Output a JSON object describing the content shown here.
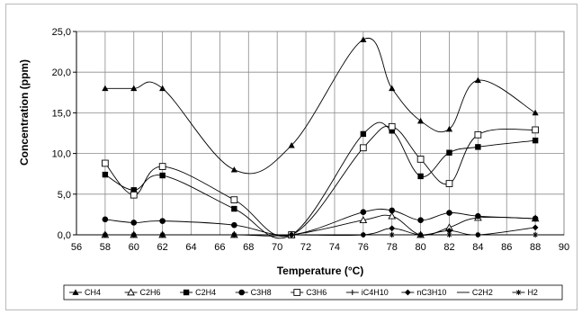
{
  "chart_data": {
    "type": "line",
    "title": "",
    "xlabel": "Temperature (°C)",
    "ylabel": "Concentration (ppm)",
    "xlim": [
      56,
      90
    ],
    "ylim": [
      0,
      25
    ],
    "xticks": [
      "56",
      "58",
      "60",
      "62",
      "64",
      "66",
      "68",
      "70",
      "72",
      "74",
      "76",
      "78",
      "80",
      "82",
      "84",
      "86",
      "88",
      "90"
    ],
    "yticks": [
      "0,0",
      "5,0",
      "10,0",
      "15,0",
      "20,0",
      "25,0"
    ],
    "grid": "on",
    "legend_position": "bottom",
    "series": [
      {
        "name": "CH4",
        "marker": "triangle-filled",
        "color": "#000000",
        "x": [
          58,
          60,
          62,
          67,
          71,
          76,
          78,
          80,
          82,
          84,
          88
        ],
        "y": [
          18.0,
          18.0,
          18.0,
          8.0,
          11.0,
          24.0,
          18.0,
          14.0,
          13.0,
          19.0,
          15.0
        ]
      },
      {
        "name": "C2H6",
        "marker": "triangle-open",
        "color": "#000000",
        "x": [
          58,
          60,
          62,
          67,
          71,
          76,
          78,
          80,
          82,
          84,
          88
        ],
        "y": [
          0.0,
          0.0,
          0.0,
          0.0,
          0.0,
          1.8,
          2.3,
          0.0,
          0.9,
          2.1,
          2.0
        ]
      },
      {
        "name": "C2H4",
        "marker": "square-filled",
        "color": "#000000",
        "x": [
          58,
          60,
          62,
          67,
          71,
          76,
          78,
          80,
          82,
          84,
          88
        ],
        "y": [
          7.4,
          5.5,
          7.3,
          3.2,
          0.0,
          12.4,
          12.8,
          7.2,
          10.1,
          10.8,
          11.6
        ]
      },
      {
        "name": "C3H8",
        "marker": "circle-filled",
        "color": "#000000",
        "x": [
          58,
          60,
          62,
          67,
          71,
          76,
          78,
          80,
          82,
          84,
          88
        ],
        "y": [
          1.9,
          1.5,
          1.7,
          1.2,
          0.0,
          2.8,
          3.0,
          1.8,
          2.7,
          2.3,
          2.0
        ]
      },
      {
        "name": "C3H6",
        "marker": "square-open",
        "color": "#000000",
        "x": [
          58,
          60,
          62,
          67,
          71,
          76,
          78,
          80,
          82,
          84,
          88
        ],
        "y": [
          8.8,
          4.9,
          8.4,
          4.3,
          0.0,
          10.7,
          13.3,
          9.3,
          6.3,
          12.3,
          12.9
        ]
      },
      {
        "name": "iC4H10",
        "marker": "plus",
        "color": "#000000",
        "x": [
          58,
          60,
          62,
          67,
          71,
          76,
          78,
          80,
          82,
          84,
          88
        ],
        "y": [
          0.0,
          0.0,
          0.0,
          0.0,
          0.0,
          0.0,
          0.0,
          0.0,
          0.0,
          0.0,
          0.0
        ]
      },
      {
        "name": "nC3H10",
        "marker": "diamond-filled",
        "color": "#000000",
        "x": [
          58,
          60,
          62,
          67,
          71,
          76,
          78,
          80,
          82,
          84,
          88
        ],
        "y": [
          0.0,
          0.0,
          0.0,
          0.0,
          0.0,
          0.0,
          0.8,
          0.0,
          0.5,
          0.0,
          0.9
        ]
      },
      {
        "name": "C2H2",
        "marker": "none",
        "color": "#000000",
        "x": [
          58,
          60,
          62,
          67,
          71,
          76,
          78,
          80,
          82,
          84,
          88
        ],
        "y": [
          0.0,
          0.0,
          0.0,
          0.0,
          0.0,
          0.0,
          0.0,
          0.0,
          0.0,
          0.0,
          0.0
        ]
      },
      {
        "name": "H2",
        "marker": "star",
        "color": "#000000",
        "x": [
          58,
          60,
          62,
          67,
          71,
          76,
          78,
          80,
          82,
          84,
          88
        ],
        "y": [
          0.0,
          0.0,
          0.0,
          0.0,
          0.0,
          0.0,
          0.0,
          0.0,
          0.0,
          0.0,
          0.0
        ]
      }
    ]
  }
}
